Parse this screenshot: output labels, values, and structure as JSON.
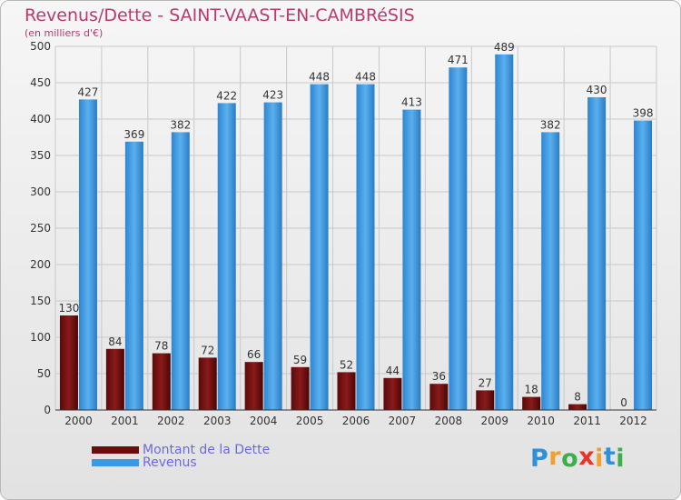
{
  "title": "Revenus/Dette - SAINT-VAAST-EN-CAMBRéSIS",
  "subtitle": "(en milliers d'€)",
  "legend": [
    {
      "label": "Montant de la Dette",
      "color": "#7a1010"
    },
    {
      "label": "Revenus",
      "color": "#3a99e2"
    }
  ],
  "logo": {
    "letters": [
      {
        "ch": "P",
        "color": "#2f8fd8"
      },
      {
        "ch": "r",
        "color": "#f0a030"
      },
      {
        "ch": "o",
        "color": "#3ab04a"
      },
      {
        "ch": "x",
        "color": "#e8352b"
      },
      {
        "ch": "i",
        "color": "#f0a030"
      },
      {
        "ch": "t",
        "color": "#2f8fd8"
      },
      {
        "ch": "i",
        "color": "#3ab04a"
      }
    ]
  },
  "chart_data": {
    "type": "bar",
    "title": "Revenus/Dette - SAINT-VAAST-EN-CAMBRéSIS",
    "subtitle": "(en milliers d'€)",
    "categories": [
      "2000",
      "2001",
      "2002",
      "2003",
      "2004",
      "2005",
      "2006",
      "2007",
      "2008",
      "2009",
      "2010",
      "2011",
      "2012"
    ],
    "series": [
      {
        "name": "Montant de la Dette",
        "color": "#7a1010",
        "values": [
          130,
          84,
          78,
          72,
          66,
          59,
          52,
          44,
          36,
          27,
          18,
          8,
          0
        ]
      },
      {
        "name": "Revenus",
        "color": "#3a99e2",
        "values": [
          427,
          369,
          382,
          422,
          423,
          448,
          448,
          413,
          471,
          489,
          382,
          430,
          398
        ]
      }
    ],
    "ylim": [
      0,
      500
    ],
    "yticks": [
      0,
      50,
      100,
      150,
      200,
      250,
      300,
      350,
      400,
      450,
      500
    ],
    "grid": true,
    "legend_position": "bottom-left"
  }
}
